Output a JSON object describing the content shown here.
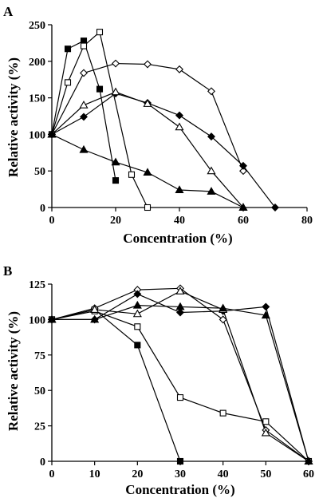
{
  "chart_data": [
    {
      "type": "line",
      "panel_label": "A",
      "xlabel": "Concentration (%)",
      "ylabel": "Relative activity (%)",
      "xlim": [
        0,
        80
      ],
      "ylim": [
        0,
        250
      ],
      "xticks": [
        0,
        20,
        40,
        60,
        80
      ],
      "yticks": [
        0,
        50,
        100,
        150,
        200,
        250
      ],
      "grid": false,
      "series": [
        {
          "marker": "square-filled",
          "x": [
            0,
            5,
            10,
            15,
            20
          ],
          "y": [
            100,
            217,
            228,
            162,
            37
          ]
        },
        {
          "marker": "square-open",
          "x": [
            0,
            5,
            10,
            15,
            25,
            30
          ],
          "y": [
            100,
            171,
            221,
            240,
            45,
            0
          ]
        },
        {
          "marker": "diamond-open",
          "x": [
            0,
            10,
            20,
            30,
            40,
            50,
            60
          ],
          "y": [
            100,
            184,
            197,
            196,
            189,
            159,
            50
          ]
        },
        {
          "marker": "diamond-filled",
          "x": [
            0,
            10,
            20,
            30,
            40,
            50,
            60,
            70
          ],
          "y": [
            100,
            124,
            156,
            143,
            126,
            97,
            57,
            0
          ]
        },
        {
          "marker": "triangle-open",
          "x": [
            0,
            10,
            20,
            30,
            40,
            50,
            60
          ],
          "y": [
            100,
            140,
            158,
            142,
            110,
            50,
            0
          ]
        },
        {
          "marker": "triangle-filled",
          "x": [
            0,
            10,
            20,
            30,
            40,
            50,
            60
          ],
          "y": [
            100,
            79,
            62,
            48,
            24,
            22,
            0
          ]
        }
      ]
    },
    {
      "type": "line",
      "panel_label": "B",
      "xlabel": "Concentration (%)",
      "ylabel": "Relative activity (%)",
      "xlim": [
        0,
        60
      ],
      "ylim": [
        0,
        125
      ],
      "xticks": [
        0,
        10,
        20,
        30,
        40,
        50,
        60
      ],
      "yticks": [
        0,
        25,
        50,
        75,
        100,
        125
      ],
      "grid": false,
      "series": [
        {
          "marker": "square-filled",
          "x": [
            0,
            10,
            20,
            30
          ],
          "y": [
            100,
            107,
            82,
            0
          ]
        },
        {
          "marker": "square-open",
          "x": [
            0,
            10,
            20,
            30,
            40,
            50,
            60
          ],
          "y": [
            100,
            106,
            95,
            45,
            34,
            28,
            0
          ]
        },
        {
          "marker": "diamond-open",
          "x": [
            0,
            10,
            20,
            30,
            40,
            50,
            60
          ],
          "y": [
            100,
            108,
            121,
            122,
            100,
            22,
            0
          ]
        },
        {
          "marker": "diamond-filled",
          "x": [
            0,
            10,
            20,
            30,
            40,
            50,
            60
          ],
          "y": [
            100,
            100,
            118,
            105,
            106,
            109,
            0
          ]
        },
        {
          "marker": "triangle-open",
          "x": [
            0,
            10,
            20,
            30,
            40,
            50,
            60
          ],
          "y": [
            100,
            107,
            104,
            120,
            107,
            20,
            0
          ]
        },
        {
          "marker": "triangle-filled",
          "x": [
            0,
            10,
            20,
            30,
            40,
            50,
            60
          ],
          "y": [
            100,
            100,
            110,
            109,
            108,
            103,
            0
          ]
        }
      ]
    }
  ]
}
